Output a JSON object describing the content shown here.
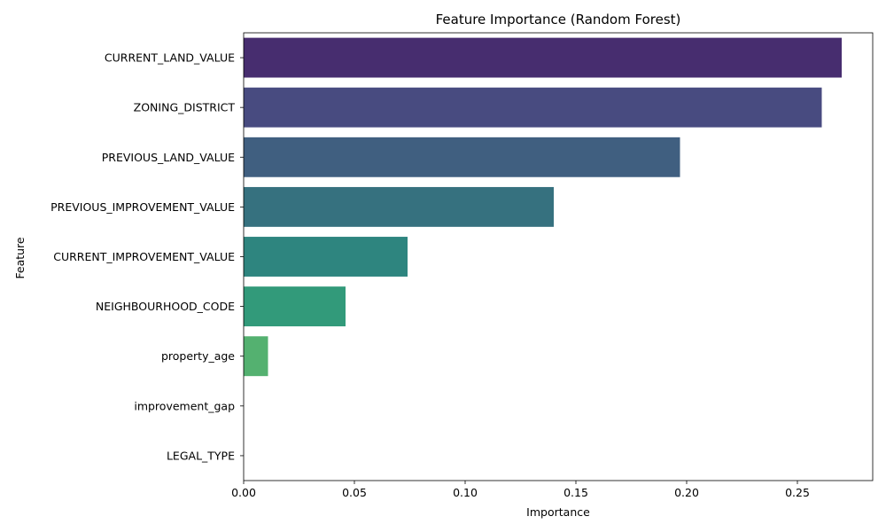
{
  "chart_data": {
    "type": "bar",
    "orientation": "horizontal",
    "title": "Feature Importance (Random Forest)",
    "xlabel": "Importance",
    "ylabel": "Feature",
    "categories": [
      "CURRENT_LAND_VALUE",
      "ZONING_DISTRICT",
      "PREVIOUS_LAND_VALUE",
      "PREVIOUS_IMPROVEMENT_VALUE",
      "CURRENT_IMPROVEMENT_VALUE",
      "NEIGHBOURHOOD_CODE",
      "property_age",
      "improvement_gap",
      "LEGAL_TYPE"
    ],
    "values": [
      0.27,
      0.261,
      0.197,
      0.14,
      0.074,
      0.046,
      0.011,
      0.0,
      0.0
    ],
    "colors": [
      "#472d6f",
      "#484b80",
      "#405f80",
      "#36717f",
      "#2e857f",
      "#329a7a",
      "#54b170",
      "#87c05e",
      "#b9d04a"
    ],
    "xlim": [
      0,
      0.284
    ],
    "xticks": [
      "0.00",
      "0.05",
      "0.10",
      "0.15",
      "0.20",
      "0.25"
    ],
    "xtick_values": [
      0,
      0.05,
      0.1,
      0.15,
      0.2,
      0.25
    ],
    "grid": false,
    "legend": "none"
  }
}
